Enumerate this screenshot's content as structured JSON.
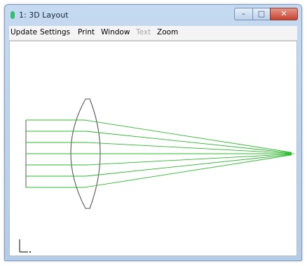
{
  "window": {
    "title": "1: 3D Layout",
    "minimize_glyph": "–",
    "maximize_glyph": "□",
    "close_glyph": "✕"
  },
  "menu": {
    "items": [
      {
        "label": "Update",
        "enabled": true
      },
      {
        "label": "Settings",
        "enabled": true
      },
      {
        "label": "Print",
        "enabled": true
      },
      {
        "label": "Window",
        "enabled": true
      },
      {
        "label": "Text",
        "enabled": false
      },
      {
        "label": "Zoom",
        "enabled": true
      }
    ]
  },
  "layout_view": {
    "ray_color": "#2eb82e",
    "lens_color": "#555555",
    "ray_count": 7
  }
}
